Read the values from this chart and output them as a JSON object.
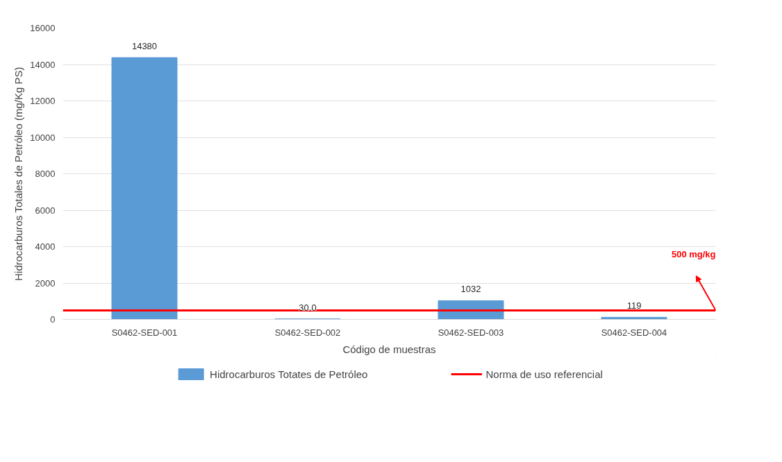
{
  "chart_data": {
    "type": "bar",
    "xlabel": "Código de muestras",
    "ylabel": "Hidrocarburos Totales de Petróleo (mg/Kg PS)",
    "categories": [
      "S0462-SED-001",
      "S0462-SED-002",
      "S0462-SED-003",
      "S0462-SED-004"
    ],
    "series": [
      {
        "name": "Hidrocarburos Totates de Petróleo",
        "color": "#5b9bd5",
        "values": [
          14380,
          30,
          1032,
          119
        ],
        "value_labels": [
          "14380",
          "30,0",
          "1032",
          "119"
        ]
      }
    ],
    "ylim": [
      0,
      16000
    ],
    "yticks": [
      0,
      2000,
      4000,
      6000,
      8000,
      10000,
      12000,
      14000,
      16000
    ],
    "ref_lines": [
      {
        "axis": "y",
        "value": 500,
        "label": "Norma de uso referencial",
        "color": "#ff0000"
      }
    ],
    "annotations": [
      "500 mg/kg"
    ],
    "grid": "y",
    "legend": "bottom"
  }
}
